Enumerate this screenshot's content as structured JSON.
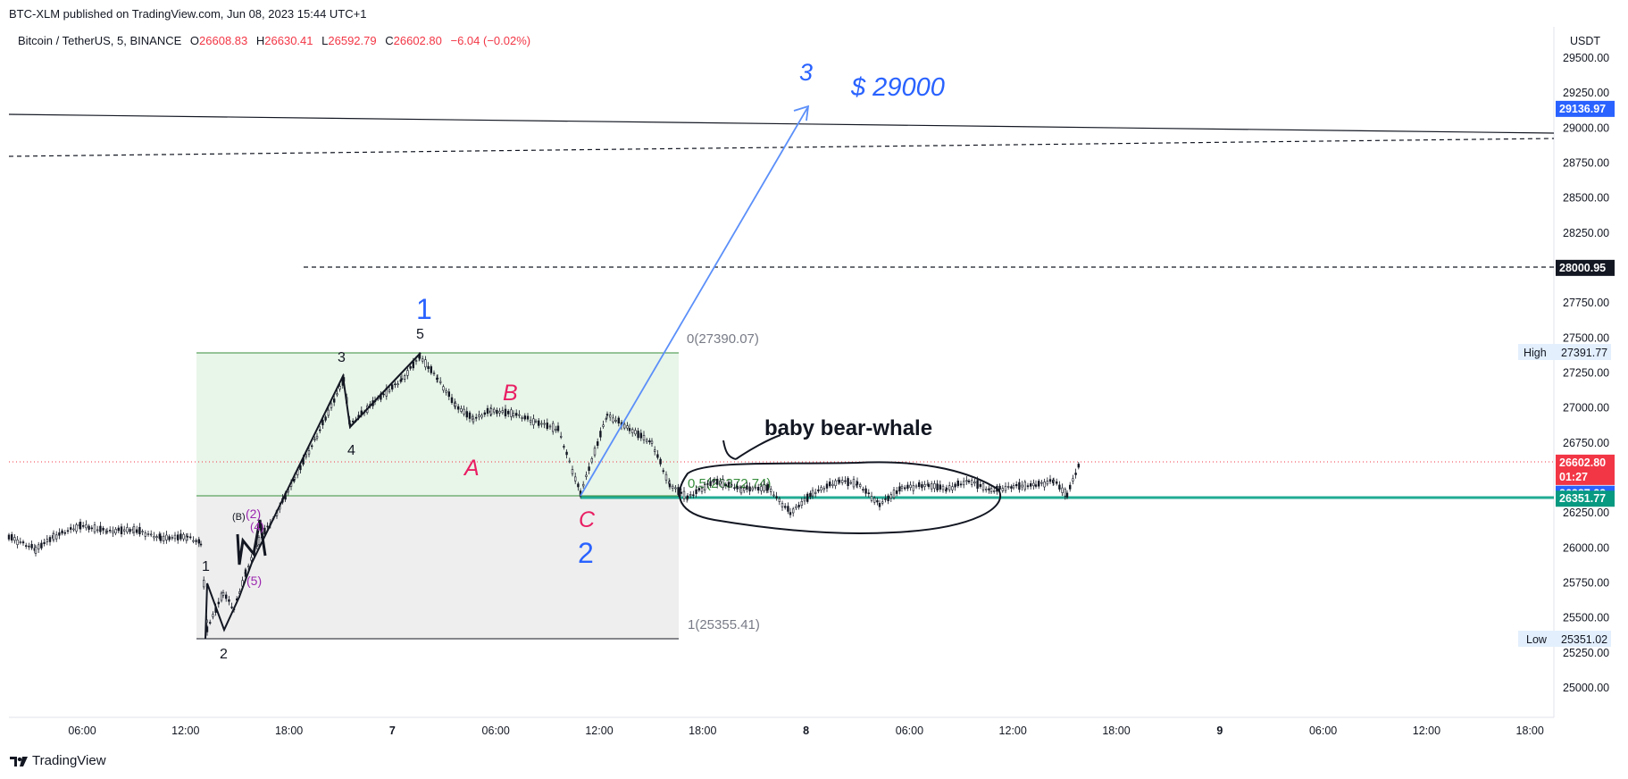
{
  "header": {
    "publish_line": "BTC-XLM published on TradingView.com, Jun 08, 2023 15:44 UTC+1"
  },
  "legend": {
    "symbol": "Bitcoin / TetherUS, 5, BINANCE",
    "o_label": "O",
    "o_value": "26608.83",
    "h_label": "H",
    "h_value": "26630.41",
    "l_label": "L",
    "l_value": "26592.79",
    "c_label": "C",
    "c_value": "26602.80",
    "change": "−6.04 (−0.02%)"
  },
  "brand": {
    "logo_text": "TradingView"
  },
  "colors": {
    "down": "#f23645",
    "up": "#089981",
    "candle": "#131722",
    "wave_blue": "#2962ff",
    "wave_red": "#e91e63",
    "fib_green": "#388e3c",
    "teal_line": "#22ab94",
    "arrow_blue": "#5b8ff9"
  },
  "chart_data": {
    "type": "candlestick",
    "symbol": "Bitcoin / TetherUS, 5, BINANCE",
    "currency": "USDT",
    "ylim": [
      24850,
      29650
    ],
    "y_ticks": [
      "25000.00",
      "25250.00",
      "25500.00",
      "25750.00",
      "26000.00",
      "26250.00",
      "26500.00",
      "26750.00",
      "27000.00",
      "27250.00",
      "27500.00",
      "27750.00",
      "28000.00",
      "28250.00",
      "28500.00",
      "28750.00",
      "29000.00",
      "29250.00",
      "29500.00"
    ],
    "x_ticks": [
      "06:00",
      "12:00",
      "18:00",
      "7",
      "06:00",
      "12:00",
      "18:00",
      "8",
      "06:00",
      "12:00",
      "18:00",
      "9",
      "06:00",
      "12:00",
      "18:00"
    ],
    "price_tags": [
      {
        "value": 29136.97,
        "label": "29136.97",
        "style": "blue"
      },
      {
        "value": 28000.95,
        "label": "28000.95",
        "style": "black"
      },
      {
        "value": 26602.8,
        "label": "26602.80",
        "sub": "01:27",
        "style": "red"
      },
      {
        "value": 26387.22,
        "label": "26387.22",
        "style": "blue"
      },
      {
        "value": 26351.77,
        "label": "26351.77",
        "style": "teal"
      }
    ],
    "high": {
      "label": "High",
      "value": "27391.77"
    },
    "low": {
      "label": "Low",
      "value": "25351.02"
    },
    "fib": {
      "level0": "0(27390.07)",
      "level05": "0.5(26372.74)",
      "level1": "1(25355.41)"
    },
    "wave_labels": {
      "w1": "1",
      "w2": "2",
      "w3": "3",
      "a": "A",
      "b": "B",
      "c": "C",
      "sub1": "1",
      "sub2": "2",
      "sub3": "3",
      "sub4": "4",
      "sub5": "5",
      "paren_b": "(B)",
      "paren_2": "(2)",
      "paren_4": "(4)",
      "paren_5": "(5)"
    },
    "annotations": {
      "target": "$ 29000",
      "note": "baby bear-whale"
    }
  }
}
